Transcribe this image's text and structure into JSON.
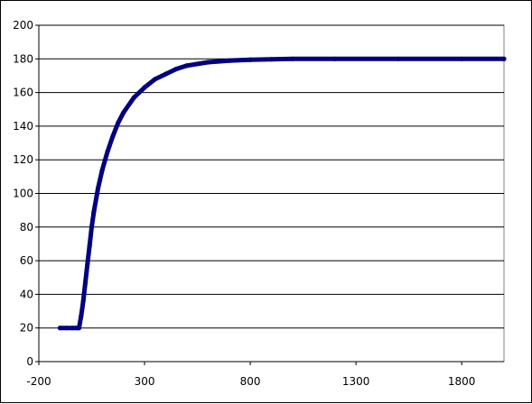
{
  "chart_data": {
    "type": "line",
    "title": "",
    "xlabel": "",
    "ylabel": "",
    "xlim": [
      -200,
      2000
    ],
    "ylim": [
      0,
      200
    ],
    "x_ticks": [
      "-200",
      "300",
      "800",
      "1300",
      "1800"
    ],
    "y_ticks": [
      "0",
      "20",
      "40",
      "60",
      "80",
      "100",
      "120",
      "140",
      "160",
      "180",
      "200"
    ],
    "grid": "horizontal",
    "legend": "none",
    "series": [
      {
        "color": "#000080",
        "x": [
          -100,
          -70,
          -40,
          -20,
          -10,
          0,
          10,
          20,
          30,
          40,
          50,
          60,
          80,
          100,
          125,
          150,
          175,
          200,
          250,
          300,
          350,
          400,
          450,
          500,
          600,
          700,
          800,
          900,
          1000,
          1200,
          1500,
          1800,
          2000
        ],
        "y": [
          20,
          20,
          20,
          20,
          20,
          27,
          36,
          47,
          58,
          69,
          80,
          89,
          103,
          114,
          125,
          134,
          142,
          148,
          157,
          163,
          168,
          171,
          174,
          176,
          178,
          179,
          179.5,
          179.8,
          180,
          180,
          180,
          180,
          180
        ]
      }
    ]
  }
}
